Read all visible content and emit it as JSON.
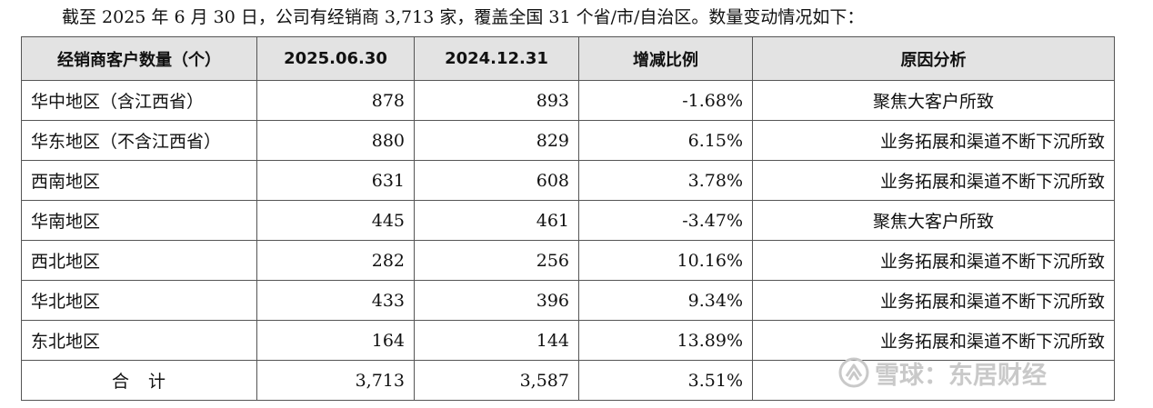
{
  "intro": "截至 2025 年 6 月 30 日，公司有经销商 3,713 家，覆盖全国 31 个省/市/自治区。数量变动情况如下：",
  "table": {
    "headers": [
      "经销商客户数量（个）",
      "2025.06.30",
      "2024.12.31",
      "增减比例",
      "原因分析"
    ],
    "rows": [
      {
        "region": "华中地区（含江西省）",
        "v2025": "878",
        "v2024": "893",
        "change": "-1.68%",
        "reason": "聚焦大客户所致"
      },
      {
        "region": "华东地区（不含江西省）",
        "v2025": "880",
        "v2024": "829",
        "change": "6.15%",
        "reason": "业务拓展和渠道不断下沉所致"
      },
      {
        "region": "西南地区",
        "v2025": "631",
        "v2024": "608",
        "change": "3.78%",
        "reason": "业务拓展和渠道不断下沉所致"
      },
      {
        "region": "华南地区",
        "v2025": "445",
        "v2024": "461",
        "change": "-3.47%",
        "reason": "聚焦大客户所致"
      },
      {
        "region": "西北地区",
        "v2025": "282",
        "v2024": "256",
        "change": "10.16%",
        "reason": "业务拓展和渠道不断下沉所致"
      },
      {
        "region": "华北地区",
        "v2025": "433",
        "v2024": "396",
        "change": "9.34%",
        "reason": "业务拓展和渠道不断下沉所致"
      },
      {
        "region": "东北地区",
        "v2025": "164",
        "v2024": "144",
        "change": "13.89%",
        "reason": "业务拓展和渠道不断下沉所致"
      }
    ],
    "total": {
      "label": "合　计",
      "v2025": "3,713",
      "v2024": "3,587",
      "change": "3.51%",
      "reason": ""
    }
  },
  "watermark": {
    "text": "雪球：东居财经",
    "icon": "snowball-logo-icon",
    "color": "#c9c9c9"
  }
}
